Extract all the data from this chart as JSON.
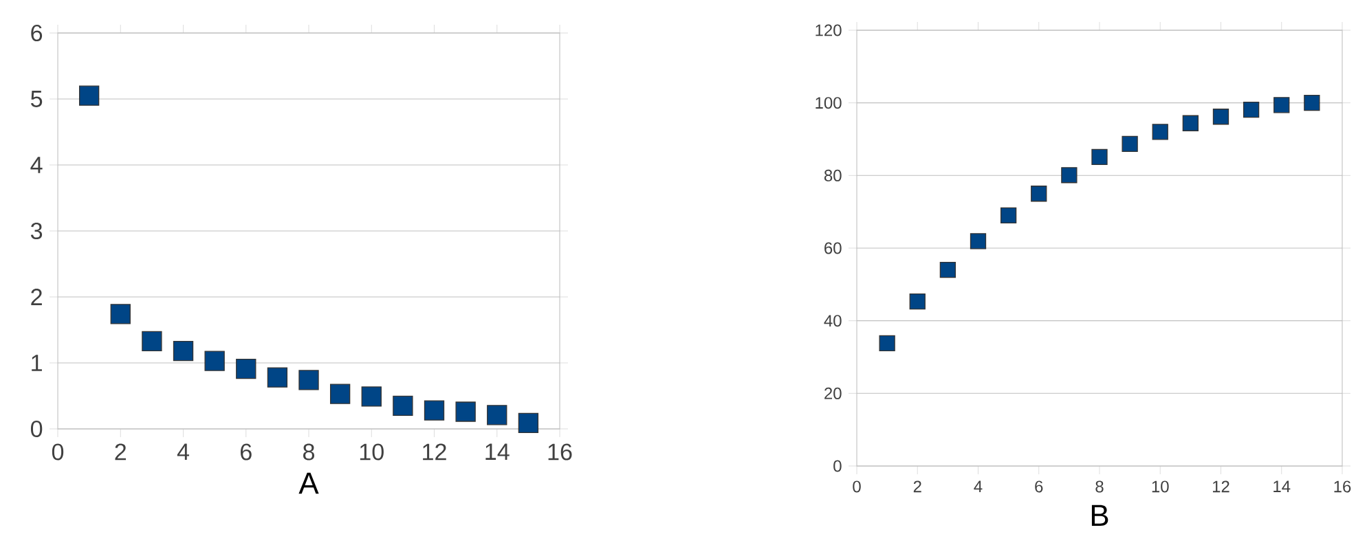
{
  "chart_data": [
    {
      "type": "scatter",
      "xlabel": "A",
      "x": [
        1,
        2,
        3,
        4,
        5,
        6,
        7,
        8,
        9,
        10,
        11,
        12,
        13,
        14,
        15
      ],
      "xlim": [
        0,
        16
      ],
      "xticks": [
        0,
        2,
        4,
        6,
        8,
        10,
        12,
        14,
        16
      ],
      "ylim": [
        0,
        6
      ],
      "yticks": [
        0,
        1,
        2,
        3,
        4,
        5,
        6
      ],
      "grid": "y",
      "marker": "square",
      "series": [
        {
          "color": "#004586",
          "values": [
            5.05,
            1.74,
            1.33,
            1.18,
            1.03,
            0.91,
            0.78,
            0.74,
            0.53,
            0.49,
            0.35,
            0.28,
            0.26,
            0.21,
            0.09
          ]
        }
      ]
    },
    {
      "type": "scatter",
      "xlabel": "B",
      "x": [
        1,
        2,
        3,
        4,
        5,
        6,
        7,
        8,
        9,
        10,
        11,
        12,
        13,
        14,
        15
      ],
      "xlim": [
        0,
        16
      ],
      "xticks": [
        0,
        2,
        4,
        6,
        8,
        10,
        12,
        14,
        16
      ],
      "ylim": [
        0,
        120
      ],
      "yticks": [
        0,
        20,
        40,
        60,
        80,
        100,
        120
      ],
      "grid": "y",
      "marker": "square",
      "series": [
        {
          "color": "#004586",
          "values": [
            33.8,
            45.3,
            54,
            61.9,
            69,
            75,
            80.1,
            85.1,
            88.7,
            92,
            94.4,
            96.2,
            98.1,
            99.4,
            100
          ]
        }
      ]
    }
  ]
}
